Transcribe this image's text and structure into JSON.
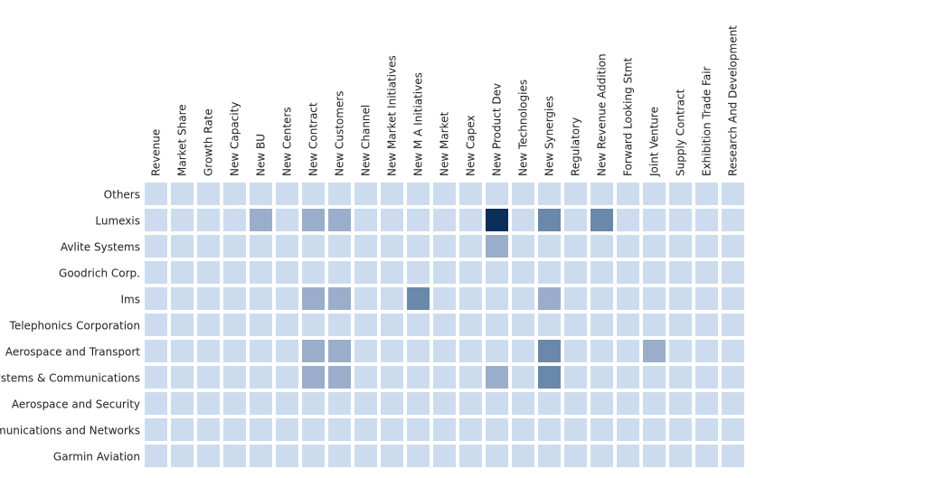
{
  "chart_data": {
    "type": "heatmap",
    "title": "",
    "xlabel": "",
    "ylabel": "",
    "x_categories": [
      "Revenue",
      "Market Share",
      "Growth Rate",
      "New Capacity",
      "New BU",
      "New Centers",
      "New Contract",
      "New Customers",
      "New Channel",
      "New Market Initiatives",
      "New M A Initiatives",
      "New Market",
      "New Capex",
      "New Product Dev",
      "New Technologies",
      "New Synergies",
      "Regulatory",
      "New Revenue Addition",
      "Forward Looking Stmt",
      "Joint Venture",
      "Supply Contract",
      "Exhibition Trade Fair",
      "Research And Development"
    ],
    "y_categories": [
      "Others",
      "Lumexis",
      "Avlite Systems",
      "Goodrich Corp.",
      "Ims",
      "Telephonics Corporation",
      "Aerospace and Transport",
      "Systems & Communications",
      "Aerospace and Security",
      "Communications and Networks",
      "Garmin Aviation"
    ],
    "values": [
      [
        0,
        0,
        0,
        0,
        0,
        0,
        0,
        0,
        0,
        0,
        0,
        0,
        0,
        0,
        0,
        0,
        0,
        0,
        0,
        0,
        0,
        0,
        0
      ],
      [
        0,
        0,
        0,
        0,
        1,
        0,
        1,
        1,
        0,
        0,
        0,
        0,
        0,
        4,
        0,
        2,
        0,
        2,
        0,
        0,
        0,
        0,
        0
      ],
      [
        0,
        0,
        0,
        0,
        0,
        0,
        0,
        0,
        0,
        0,
        0,
        0,
        0,
        1,
        0,
        0,
        0,
        0,
        0,
        0,
        0,
        0,
        0
      ],
      [
        0,
        0,
        0,
        0,
        0,
        0,
        0,
        0,
        0,
        0,
        0,
        0,
        0,
        0,
        0,
        0,
        0,
        0,
        0,
        0,
        0,
        0,
        0
      ],
      [
        0,
        0,
        0,
        0,
        0,
        0,
        1,
        1,
        0,
        0,
        2,
        0,
        0,
        0,
        0,
        1,
        0,
        0,
        0,
        0,
        0,
        0,
        0
      ],
      [
        0,
        0,
        0,
        0,
        0,
        0,
        0,
        0,
        0,
        0,
        0,
        0,
        0,
        0,
        0,
        0,
        0,
        0,
        0,
        0,
        0,
        0,
        0
      ],
      [
        0,
        0,
        0,
        0,
        0,
        0,
        1,
        1,
        0,
        0,
        0,
        0,
        0,
        0,
        0,
        2,
        0,
        0,
        0,
        1,
        0,
        0,
        0
      ],
      [
        0,
        0,
        0,
        0,
        0,
        0,
        1,
        1,
        0,
        0,
        0,
        0,
        0,
        1,
        0,
        2,
        0,
        0,
        0,
        0,
        0,
        0,
        0
      ],
      [
        0,
        0,
        0,
        0,
        0,
        0,
        0,
        0,
        0,
        0,
        0,
        0,
        0,
        0,
        0,
        0,
        0,
        0,
        0,
        0,
        0,
        0,
        0
      ],
      [
        0,
        0,
        0,
        0,
        0,
        0,
        0,
        0,
        0,
        0,
        0,
        0,
        0,
        0,
        0,
        0,
        0,
        0,
        0,
        0,
        0,
        0,
        0
      ],
      [
        0,
        0,
        0,
        0,
        0,
        0,
        0,
        0,
        0,
        0,
        0,
        0,
        0,
        0,
        0,
        0,
        0,
        0,
        0,
        0,
        0,
        0,
        0
      ]
    ],
    "colors": {
      "zero": "#ccdcee",
      "low": "#9aaecb",
      "mid": "#6a88aa",
      "high": "#0b2e5a"
    },
    "legend": "none",
    "grid": false
  }
}
